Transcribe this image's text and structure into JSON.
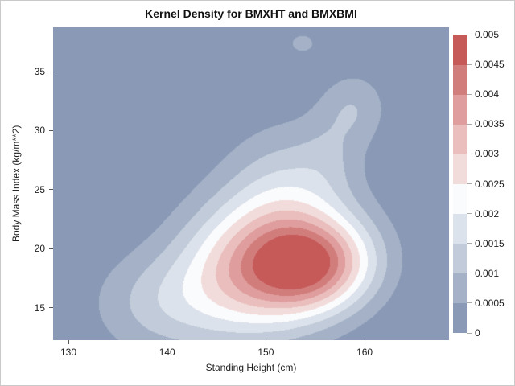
{
  "figure": {
    "background": "#FFFFFF",
    "border_color": "#C9C9C9"
  },
  "chart_data": {
    "type": "contour",
    "subtype": "filled-kernel-density",
    "title": "Kernel Density for BMXHT and BMXBMI",
    "xlabel": "Standing Height (cm)",
    "ylabel": "Body Mass Index (kg/m**2)",
    "xlim": [
      128.45,
      168.55
    ],
    "ylim": [
      12.25,
      38.75
    ],
    "xticks": [
      130,
      140,
      150,
      160
    ],
    "yticks": [
      15,
      20,
      25,
      30,
      35
    ],
    "grid": false,
    "legend": {
      "position": "right",
      "orientation": "vertical",
      "levels": [
        0,
        0.0005,
        0.001,
        0.0015,
        0.002,
        0.0025,
        0.003,
        0.0035,
        0.004,
        0.0045,
        0.005
      ],
      "labels": [
        "0",
        "0.0005",
        "0.001",
        "0.0015",
        "0.002",
        "0.0025",
        "0.003",
        "0.0035",
        "0.004",
        "0.0045",
        "0.005"
      ],
      "band_colors": [
        "#8A99B5",
        "#A4B1C7",
        "#C1CBD9",
        "#DCE2EB",
        "#FAFBFD",
        "#F2DCDB",
        "#E9BEBD",
        "#DF9E9D",
        "#D17D7C",
        "#C65A59"
      ]
    },
    "band_step": 0.0005,
    "density_peak": {
      "x": 154.3,
      "y": 18.5,
      "value": 0.005
    },
    "kde_components": [
      {
        "name": "main-peak",
        "amp": 0.0031,
        "cx": 154.3,
        "cy": 18.5,
        "sx": 3.9,
        "sy": 2.8
      },
      {
        "name": "left-shoulder",
        "amp": 0.003,
        "cx": 148.5,
        "cy": 18.3,
        "sx": 5.0,
        "sy": 4.0
      },
      {
        "name": "lower-left-tail",
        "amp": 0.0011,
        "cx": 139.5,
        "cy": 15.3,
        "sx": 5.0,
        "sy": 3.2
      },
      {
        "name": "upper-bulge",
        "amp": 0.0013,
        "cx": 152.5,
        "cy": 24.8,
        "sx": 4.5,
        "sy": 4.0
      },
      {
        "name": "right-shoulder",
        "amp": 0.0009,
        "cx": 158.5,
        "cy": 19.2,
        "sx": 3.6,
        "sy": 2.9
      },
      {
        "name": "upper-right-lobe",
        "amp": 0.00085,
        "cx": 159.0,
        "cy": 32.0,
        "sx": 2.4,
        "sy": 2.2
      },
      {
        "name": "lobe-connector",
        "amp": 0.0004,
        "cx": 156.5,
        "cy": 28.0,
        "sx": 2.2,
        "sy": 2.6
      },
      {
        "name": "top-small-blob",
        "amp": 0.0007,
        "cx": 153.7,
        "cy": 37.4,
        "sx": 1.15,
        "sy": 0.75
      }
    ],
    "colors": {
      "axis_tick": "#595959",
      "legend_tick": "#ABABAB",
      "text": "#1F1F1F"
    }
  }
}
